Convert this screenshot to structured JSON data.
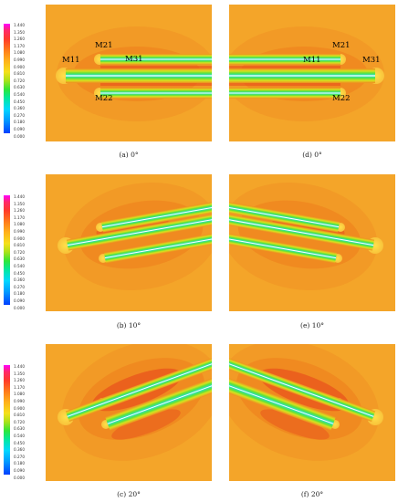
{
  "colorbar": {
    "ticks": [
      "1.440",
      "1.350",
      "1.260",
      "1.170",
      "1.080",
      "0.990",
      "0.900",
      "0.810",
      "0.720",
      "0.630",
      "0.540",
      "0.450",
      "0.360",
      "0.270",
      "0.180",
      "0.090",
      "0.000"
    ]
  },
  "captions": {
    "a": "(a) 0°",
    "b": "(b) 10°",
    "c": "(c) 20°",
    "d": "(d) 0°",
    "e": "(e) 10°",
    "f": "(f) 20°"
  },
  "labels_left": {
    "m11": "M11",
    "m21": "M21",
    "m31": "M31",
    "m22": "M22"
  },
  "labels_right": {
    "m11": "M11",
    "m21": "M21",
    "m31": "M31",
    "m22": "M22"
  },
  "colors": {
    "background": "#f4a529",
    "field_mid": "#f08a20",
    "field_high": "#e8501c",
    "wake_cyan": "#1ee0e8",
    "wake_green": "#5de23a",
    "wake_yellow": "#d7e21e"
  }
}
